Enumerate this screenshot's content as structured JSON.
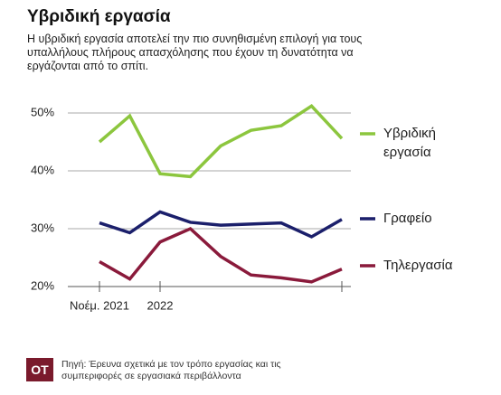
{
  "chart_data": {
    "type": "line",
    "title": "Υβριδική εργασία",
    "subtitle": "Η υβριδική εργασία αποτελεί την πιο συνηθισμένη επιλογή για τους υπαλλήλους πλήρους απασχόλησης που έχουν τη δυνατότητα να εργάζονται από το σπίτι.",
    "categories": [
      "Νοέμ. 2021",
      null,
      "2022",
      null,
      null,
      null,
      null,
      null,
      null
    ],
    "series": [
      {
        "name": "Υβριδική εργασία",
        "color": "#8cc63e",
        "values": [
          45,
          49.5,
          39.5,
          39,
          44.3,
          47,
          47.8,
          51.2,
          45.6
        ]
      },
      {
        "name": "Γραφείο",
        "color": "#1b1f6b",
        "values": [
          31,
          29.3,
          32.9,
          31.1,
          30.6,
          30.8,
          31,
          28.6,
          31.6
        ]
      },
      {
        "name": "Τηλεργασία",
        "color": "#8a1a3b",
        "values": [
          24.3,
          21.3,
          27.7,
          30,
          25.2,
          22,
          21.5,
          20.8,
          23
        ]
      }
    ],
    "ylim": [
      20,
      53
    ],
    "yticks": [
      {
        "value": 20,
        "label": "20%"
      },
      {
        "value": 30,
        "label": "30%"
      },
      {
        "value": 40,
        "label": "40%"
      },
      {
        "value": 50,
        "label": "50%"
      }
    ],
    "grid": true,
    "legend": "right",
    "logo": "OT",
    "source": "Πηγή: Έρευνα σχετικά με τον τρόπο εργασίας και τις συμπεριφορές σε εργασιακά περιβάλλοντα"
  }
}
